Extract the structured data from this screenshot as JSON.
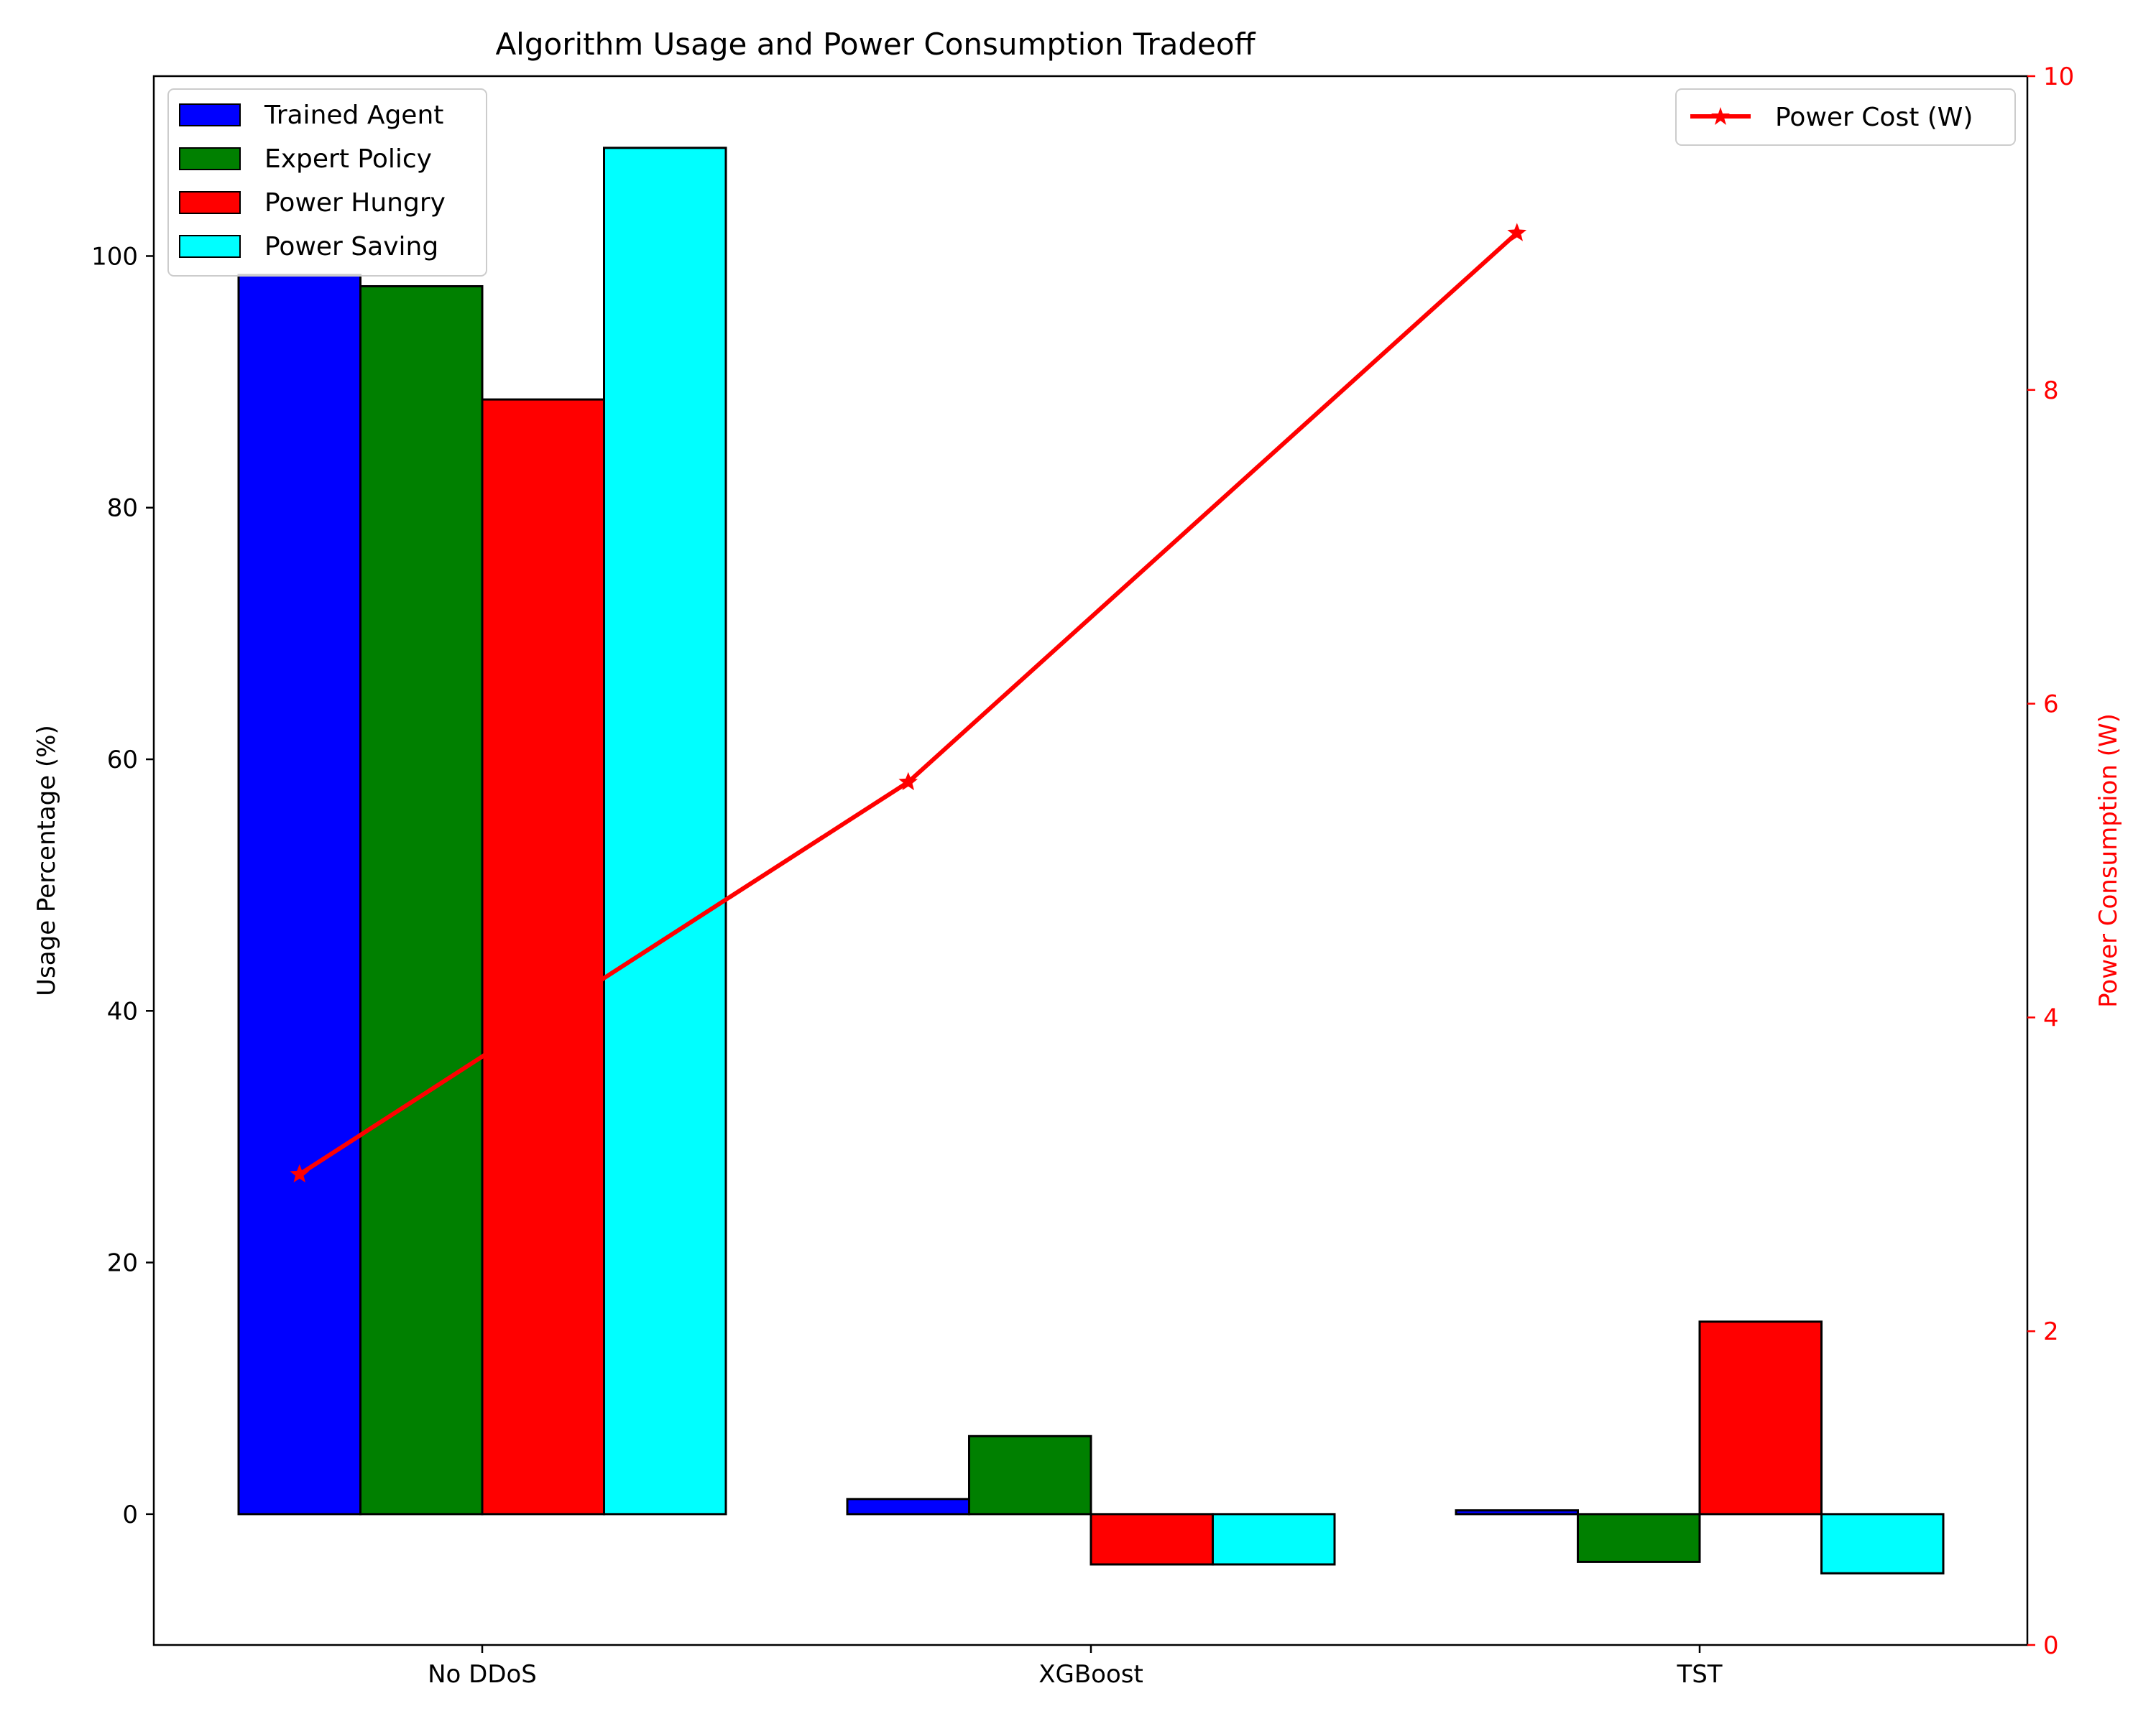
{
  "chart_data": {
    "type": "bar",
    "title": "Algorithm Usage and Power Consumption Tradeoff",
    "xlabel": "",
    "ylabel": "Usage Percentage (%)",
    "y2label": "Power Consumption (W)",
    "categories": [
      "No DDoS",
      "XGBoost",
      "TST"
    ],
    "ylim": [
      -10.4,
      114.3
    ],
    "y2lim": [
      0,
      10
    ],
    "yticks": [
      0,
      20,
      40,
      60,
      80,
      100
    ],
    "y2ticks": [
      0,
      2,
      4,
      6,
      8,
      10
    ],
    "series": [
      {
        "name": "Trained Agent",
        "color": "#0000ff",
        "values": [
          98.5,
          1.2,
          0.3
        ]
      },
      {
        "name": "Expert Policy",
        "color": "#008000",
        "values": [
          97.6,
          6.2,
          -3.8
        ]
      },
      {
        "name": "Power Hungry",
        "color": "#ff0000",
        "values": [
          88.6,
          -4.0,
          15.3
        ]
      },
      {
        "name": "Power Saving",
        "color": "#00ffff",
        "values": [
          108.6,
          -4.0,
          -4.7
        ]
      }
    ],
    "line": {
      "name": "Power Cost (W)",
      "color": "#ff0000",
      "axis": "right",
      "marker": "star",
      "values": [
        3.0,
        5.5,
        9.0
      ]
    },
    "legend_position": "upper-left",
    "line_legend_position": "upper-right",
    "grid": false
  }
}
